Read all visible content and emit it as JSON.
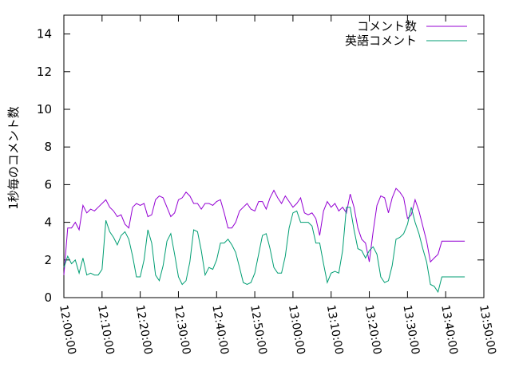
{
  "chart_data": {
    "type": "line",
    "title": "",
    "xlabel": "",
    "ylabel": "1秒毎のコメント数",
    "ylim": [
      0,
      15
    ],
    "y_ticks": [
      "0",
      "2",
      "4",
      "6",
      "8",
      "10",
      "12",
      "14"
    ],
    "y_tick_values": [
      0,
      2,
      4,
      6,
      8,
      10,
      12,
      14
    ],
    "x_range_minutes": [
      0,
      110
    ],
    "x_ticks": [
      "12:00:00",
      "12:10:00",
      "12:20:00",
      "12:30:00",
      "12:40:00",
      "12:50:00",
      "13:00:00",
      "13:10:00",
      "13:20:00",
      "13:30:00",
      "13:40:00",
      "13:50:00"
    ],
    "x_tick_minutes": [
      0,
      10,
      20,
      30,
      40,
      50,
      60,
      70,
      80,
      90,
      100,
      110
    ],
    "legend_position": "top-right",
    "grid": false,
    "series": [
      {
        "name": "コメント数",
        "color": "#9400d3",
        "x": [
          0,
          1,
          2,
          3,
          4,
          5,
          6,
          7,
          8,
          9,
          10,
          11,
          12,
          13,
          14,
          15,
          16,
          17,
          18,
          19,
          20,
          21,
          22,
          23,
          24,
          25,
          26,
          27,
          28,
          29,
          30,
          31,
          32,
          33,
          34,
          35,
          36,
          37,
          38,
          39,
          40,
          41,
          42,
          43,
          44,
          45,
          46,
          47,
          48,
          49,
          50,
          51,
          52,
          53,
          54,
          55,
          56,
          57,
          58,
          59,
          60,
          61,
          62,
          63,
          64,
          65,
          66,
          67,
          68,
          69,
          70,
          71,
          72,
          73,
          74,
          75,
          76,
          77,
          78,
          79,
          80,
          81,
          82,
          83,
          84,
          85,
          86,
          87,
          88,
          89,
          90,
          91,
          92,
          93,
          94,
          95,
          96,
          97,
          98,
          99,
          100,
          101,
          102,
          103,
          104,
          105
        ],
        "values": [
          1.2,
          3.7,
          3.7,
          4.0,
          3.6,
          4.9,
          4.5,
          4.7,
          4.6,
          4.8,
          5.0,
          5.2,
          4.8,
          4.6,
          4.3,
          4.4,
          3.9,
          3.7,
          4.8,
          5.0,
          4.9,
          5.0,
          4.3,
          4.4,
          5.2,
          5.4,
          5.3,
          4.8,
          4.3,
          4.5,
          5.2,
          5.3,
          5.6,
          5.4,
          5.0,
          5.0,
          4.7,
          5.0,
          5.0,
          4.9,
          5.1,
          5.2,
          4.5,
          3.7,
          3.7,
          4.0,
          4.6,
          4.8,
          5.0,
          4.7,
          4.6,
          5.1,
          5.1,
          4.7,
          5.3,
          5.7,
          5.3,
          5.0,
          5.4,
          5.1,
          4.8,
          5.0,
          5.3,
          4.5,
          4.4,
          4.5,
          4.2,
          3.3,
          4.6,
          5.1,
          4.8,
          5.0,
          4.6,
          4.8,
          4.5,
          5.5,
          4.8,
          3.7,
          3.1,
          2.9,
          1.9,
          3.5,
          4.9,
          5.4,
          5.3,
          4.5,
          5.3,
          5.8,
          5.6,
          5.3,
          4.2,
          4.4,
          5.2,
          4.6,
          3.8,
          3.0,
          1.9,
          2.1,
          2.3,
          3.0,
          3.0,
          3.0,
          3.0,
          3.0,
          3.0,
          3.0
        ]
      },
      {
        "name": "英語コメント",
        "color": "#009e73",
        "x": [
          0,
          1,
          2,
          3,
          4,
          5,
          6,
          7,
          8,
          9,
          10,
          11,
          12,
          13,
          14,
          15,
          16,
          17,
          18,
          19,
          20,
          21,
          22,
          23,
          24,
          25,
          26,
          27,
          28,
          29,
          30,
          31,
          32,
          33,
          34,
          35,
          36,
          37,
          38,
          39,
          40,
          41,
          42,
          43,
          44,
          45,
          46,
          47,
          48,
          49,
          50,
          51,
          52,
          53,
          54,
          55,
          56,
          57,
          58,
          59,
          60,
          61,
          62,
          63,
          64,
          65,
          66,
          67,
          68,
          69,
          70,
          71,
          72,
          73,
          74,
          75,
          76,
          77,
          78,
          79,
          80,
          81,
          82,
          83,
          84,
          85,
          86,
          87,
          88,
          89,
          90,
          91,
          92,
          93,
          94,
          95,
          96,
          97,
          98,
          99,
          100,
          101,
          102,
          103,
          104,
          105
        ],
        "values": [
          1.6,
          2.2,
          1.8,
          2.0,
          1.3,
          2.1,
          1.2,
          1.3,
          1.2,
          1.2,
          1.5,
          4.1,
          3.5,
          3.2,
          2.8,
          3.3,
          3.5,
          3.1,
          2.2,
          1.1,
          1.1,
          2.0,
          3.6,
          2.9,
          1.2,
          0.9,
          1.7,
          3.0,
          3.4,
          2.3,
          1.1,
          0.7,
          0.9,
          1.9,
          3.6,
          3.5,
          2.5,
          1.2,
          1.6,
          1.5,
          2.0,
          2.9,
          2.9,
          3.1,
          2.8,
          2.4,
          1.6,
          0.8,
          0.7,
          0.8,
          1.3,
          2.3,
          3.3,
          3.4,
          2.6,
          1.6,
          1.3,
          1.3,
          2.2,
          3.7,
          4.5,
          4.6,
          4.0,
          4.0,
          4.0,
          3.8,
          2.9,
          2.9,
          1.8,
          0.8,
          1.3,
          1.4,
          1.3,
          2.5,
          4.8,
          4.8,
          3.6,
          2.6,
          2.5,
          2.1,
          2.5,
          2.7,
          2.3,
          1.1,
          0.8,
          0.9,
          1.7,
          3.1,
          3.2,
          3.4,
          3.9,
          4.8,
          4.0,
          3.4,
          2.6,
          1.9,
          0.7,
          0.6,
          0.3,
          1.1,
          1.1,
          1.1,
          1.1,
          1.1,
          1.1,
          1.1
        ]
      }
    ]
  }
}
